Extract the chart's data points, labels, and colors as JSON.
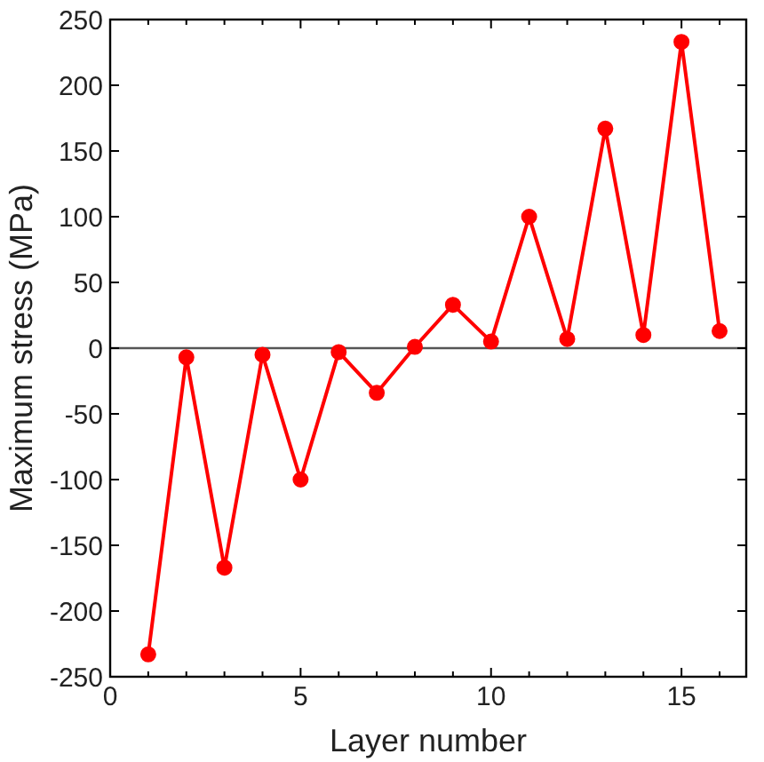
{
  "chart_data": {
    "type": "line",
    "xlabel": "Layer number",
    "ylabel": "Maximum stress (MPa)",
    "x": [
      1,
      2,
      3,
      4,
      5,
      6,
      7,
      8,
      9,
      10,
      11,
      12,
      13,
      14,
      15,
      16
    ],
    "series": [
      {
        "color": "#ff0000",
        "values": [
          -233,
          -7,
          -167,
          -5,
          -100,
          -3,
          -34,
          1,
          33,
          5,
          100,
          7,
          167,
          10,
          233,
          13
        ]
      }
    ],
    "xlim": [
      0,
      16.7
    ],
    "xticks": [
      0,
      {
        "value": 1,
        "label": null
      },
      {
        "value": 2,
        "label": null
      },
      {
        "value": 3,
        "label": null
      },
      {
        "value": 4,
        "label": null
      },
      5,
      {
        "value": 6,
        "label": null
      },
      {
        "value": 7,
        "label": null
      },
      {
        "value": 8,
        "label": null
      },
      {
        "value": 9,
        "label": null
      },
      10,
      {
        "value": 11,
        "label": null
      },
      {
        "value": 12,
        "label": null
      },
      {
        "value": 13,
        "label": null
      },
      {
        "value": 14,
        "label": null
      },
      15,
      {
        "value": 16,
        "label": null
      }
    ],
    "ylim": [
      -250,
      250
    ],
    "yticks": [
      -250,
      -200,
      -150,
      -100,
      -50,
      0,
      50,
      100,
      150,
      200,
      250
    ],
    "ref_lines": [
      {
        "axis": "y",
        "value": 0,
        "color": "#555555"
      }
    ],
    "marker": "circle",
    "line_style": "solid",
    "grid": false
  }
}
